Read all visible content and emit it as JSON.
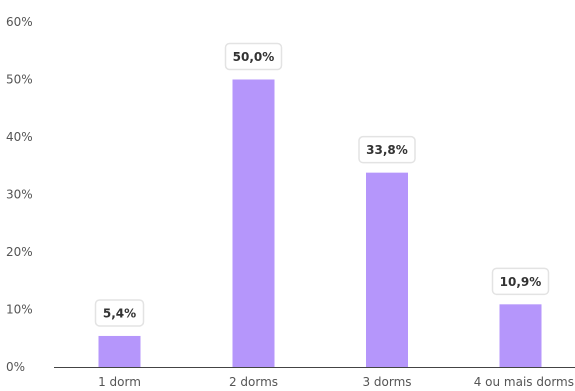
{
  "chart_data": {
    "type": "bar",
    "categories": [
      "1 dorm",
      "2 dorms",
      "3 dorms",
      "4 ou mais dorms"
    ],
    "values": [
      5.4,
      50.0,
      33.8,
      10.9
    ],
    "data_labels": [
      "5,4%",
      "50,0%",
      "33,8%",
      "10,9%"
    ],
    "y_ticks": [
      "0%",
      "10%",
      "20%",
      "30%",
      "40%",
      "50%",
      "60%"
    ],
    "ylim": [
      0,
      60
    ],
    "grid": false,
    "bar_color": "#b596fb",
    "axis_color": "#444444"
  }
}
